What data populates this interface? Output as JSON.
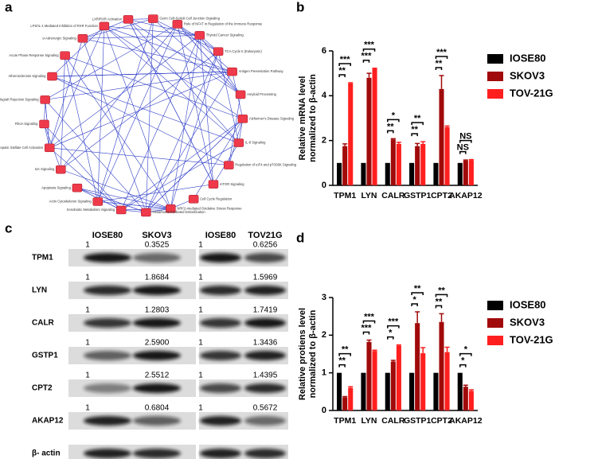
{
  "panel_labels": [
    "a",
    "b",
    "c",
    "d"
  ],
  "network": {
    "nodes": [
      "Role of NFAT in Regulation of the Immune Response",
      "Thyroid Cancer Signaling",
      "TCA Cycle II (Eukaryotic)",
      "Antigen Presentation Pathway",
      "Amyloid Processing",
      "Alzheimer's Disease Signaling",
      "IL-8 Signaling",
      "Regulation of eIF4 and p70S6K Signaling",
      "mTOR Signaling",
      "Cell Cycle Regulation",
      "NRF2-mediated Oxidative Stress Response",
      "Glutathione-mediated Detoxification",
      "Xenobiotic Metabolism Signaling",
      "Actin Cytoskeleton Signaling",
      "Apoptosis Signaling",
      "ILK Signaling",
      "Hepatic Fibrosis / Hepatic Stellate Cell Activation",
      "RhoA Signaling",
      "Allograft Rejection Signaling",
      "Atherosclerosis Signaling",
      "Acute Phase Response Signaling",
      "α-Adrenergic Signaling",
      "LPS/IL-1 Mediated Inhibition of RXR Function",
      "LXR/RXR Activation",
      "Germ Cell-Sertoli Cell Junction Signaling"
    ]
  },
  "blot": {
    "columns": [
      "IOSE80",
      "SKOV3",
      "IOSE80",
      "TOV21G"
    ],
    "rows": [
      {
        "name": "TPM1",
        "ratios": [
          "1",
          "0.3525",
          "1",
          "0.6256"
        ]
      },
      {
        "name": "LYN",
        "ratios": [
          "1",
          "1.8684",
          "1",
          "1.5969"
        ]
      },
      {
        "name": "CALR",
        "ratios": [
          "1",
          "1.2803",
          "1",
          "1.7419"
        ]
      },
      {
        "name": "GSTP1",
        "ratios": [
          "1",
          "2.5900",
          "1",
          "1.3436"
        ]
      },
      {
        "name": "CPT2",
        "ratios": [
          "1",
          "2.5512",
          "1",
          "1.4395"
        ]
      },
      {
        "name": "AKAP12",
        "ratios": [
          "1",
          "0.6804",
          "1",
          "0.5672"
        ]
      },
      {
        "name": "β- actin"
      }
    ]
  },
  "chart_data": [
    {
      "type": "bar",
      "y_label": [
        "Relative mRNA level",
        "normalized to β-actin"
      ],
      "categories": [
        "TPM1",
        "LYN",
        "CALR",
        "GSTP1",
        "CPT2",
        "AKAP12"
      ],
      "series": [
        {
          "name": "IOSE80",
          "color": "#000000",
          "values": [
            1,
            1,
            1,
            1,
            1,
            1
          ]
        },
        {
          "name": "SKOV3",
          "color": "#a10a0a",
          "values": [
            1.75,
            4.8,
            2.05,
            1.75,
            4.3,
            1.1
          ],
          "errors": [
            0.1,
            0.2,
            0.03,
            0.12,
            0.6,
            0.03
          ]
        },
        {
          "name": "TOV-21G",
          "color": "#ff1f1f",
          "values": [
            4.55,
            5.2,
            1.85,
            1.85,
            2.6,
            1.12
          ],
          "errors": [
            0.03,
            0.03,
            0.07,
            0.1,
            0.05,
            0.03
          ]
        }
      ],
      "significance": [
        [
          "**",
          "***"
        ],
        [
          "***",
          "***"
        ],
        [
          "**",
          "*"
        ],
        [
          "**",
          "**"
        ],
        [
          "**",
          "***"
        ],
        [
          "NS",
          "NS"
        ]
      ],
      "ylim": [
        0,
        6
      ],
      "yticks": [
        0,
        2,
        4,
        6
      ],
      "legend": "upper right"
    },
    {
      "type": "bar",
      "y_label": [
        "Relative protiens level",
        "normalized to β-actin"
      ],
      "categories": [
        "TPM1",
        "LYN",
        "CALR",
        "GSTP1",
        "CPT2",
        "AKAP12"
      ],
      "series": [
        {
          "name": "IOSE80",
          "color": "#000000",
          "values": [
            1,
            1,
            1,
            1,
            1,
            1
          ]
        },
        {
          "name": "SKOV3",
          "color": "#a10a0a",
          "values": [
            0.35,
            1.82,
            1.3,
            2.32,
            2.35,
            0.63
          ],
          "errors": [
            0.02,
            0.05,
            0.03,
            0.3,
            0.22,
            0.04
          ]
        },
        {
          "name": "TOV-21G",
          "color": "#ff1f1f",
          "values": [
            0.6,
            1.58,
            1.72,
            1.52,
            1.55,
            0.52
          ],
          "errors": [
            0.03,
            0.02,
            0.02,
            0.15,
            0.13,
            0.03
          ]
        }
      ],
      "significance": [
        [
          "**",
          "**"
        ],
        [
          "***",
          "***"
        ],
        [
          "*",
          "***"
        ],
        [
          "*",
          "**"
        ],
        [
          "**",
          "**"
        ],
        [
          "*",
          "*"
        ]
      ],
      "ylim": [
        0,
        3
      ],
      "yticks": [
        0,
        1,
        2,
        3
      ],
      "legend": "upper right"
    }
  ]
}
